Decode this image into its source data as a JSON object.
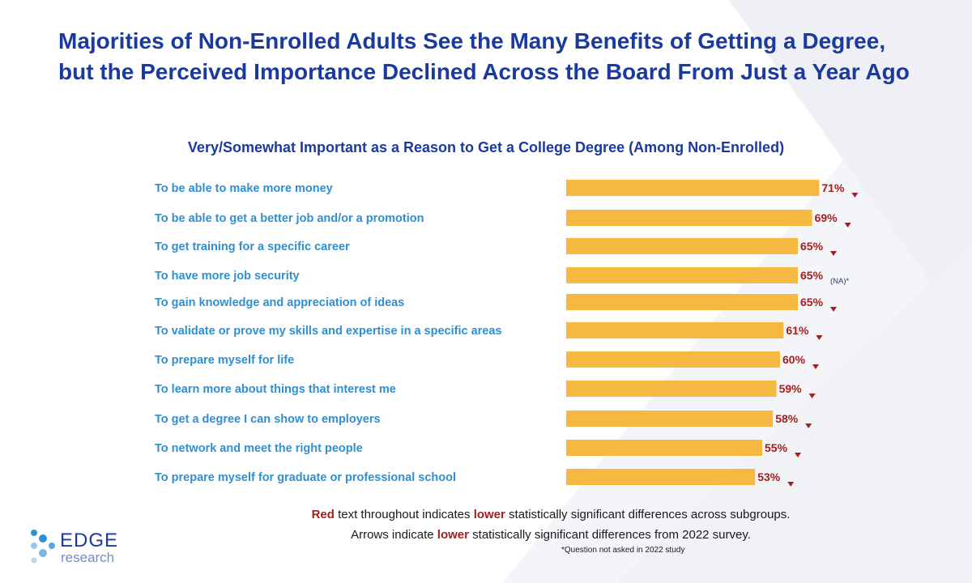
{
  "title": "Majorities of Non-Enrolled Adults See the Many Benefits of Getting a Degree, but the Perceived Importance Declined Across the Board From Just a Year Ago",
  "chart_data": {
    "type": "bar",
    "orientation": "horizontal",
    "title": "Very/Somewhat Important as a Reason to Get a College Degree (Among Non-Enrolled)",
    "categories": [
      "To be able to make more money",
      "To be able to get a better job and/or a promotion",
      "To get training for a specific career",
      "To have more job security",
      "To gain knowledge and appreciation of ideas",
      "To validate or prove my skills and expertise in a specific areas",
      "To prepare myself for life",
      "To learn more about things that interest me",
      "To get a degree I can show to employers",
      "To network and meet the right people",
      "To prepare myself for graduate or professional school"
    ],
    "values": [
      71,
      69,
      65,
      65,
      65,
      61,
      60,
      59,
      58,
      55,
      53
    ],
    "value_labels": [
      "71%",
      "69%",
      "65%",
      "65%",
      "65%",
      "61%",
      "60%",
      "59%",
      "58%",
      "55%",
      "53%"
    ],
    "decline_arrow": [
      true,
      true,
      true,
      false,
      true,
      true,
      true,
      true,
      true,
      true,
      true
    ],
    "annotations": [
      "",
      "",
      "",
      "(NA)*",
      "",
      "",
      "",
      "",
      "",
      "",
      ""
    ],
    "bar_color": "#f5b942",
    "label_color": "#2f8fd0",
    "value_color": "#a31f1f"
  },
  "notes": {
    "line1_red": "Red",
    "line1_a": " text throughout indicates ",
    "line1_lower": "lower",
    "line1_b": " statistically significant differences across subgroups.",
    "line2_a": "Arrows indicate ",
    "line2_lower": "lower",
    "line2_b": " statistically significant differences from 2022 survey.",
    "footnote": "*Question not asked in 2022 study"
  },
  "logo": {
    "word": "EDGE",
    "sub": "research"
  },
  "colors": {
    "title": "#1b3a9e",
    "accent_red": "#a31f1f"
  }
}
